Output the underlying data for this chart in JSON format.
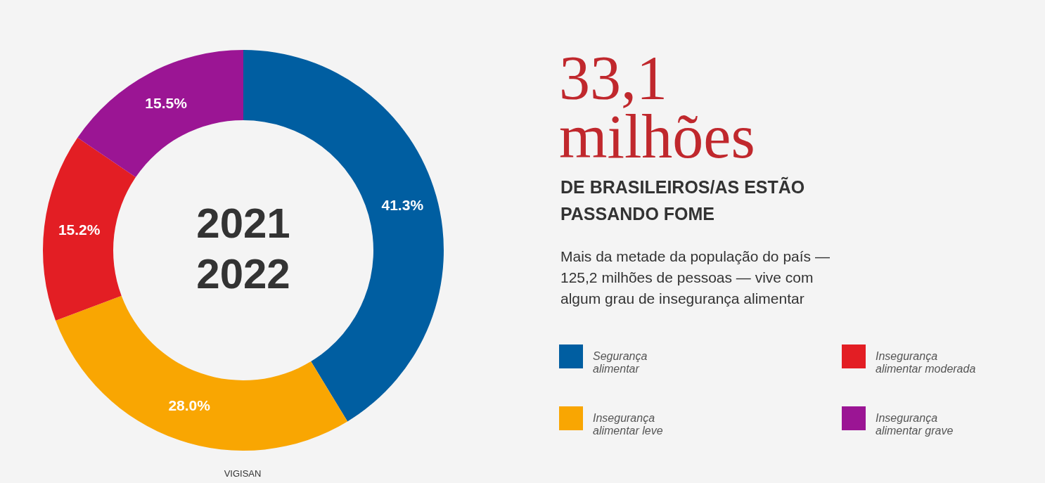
{
  "chart_data": {
    "type": "donut",
    "title": "33,1 milhões",
    "subtitle": "DE BRASILEIROS/AS ESTÃO PASSANDO FOME",
    "categories": [
      "Segurança alimentar",
      "Insegurança alimentar leve",
      "Insegurança alimentar moderada",
      "Insegurança alimentar grave"
    ],
    "values": [
      41.3,
      28.0,
      15.2,
      15.5
    ],
    "value_labels": [
      "41.3%",
      "28.0%",
      "15.2%",
      "15.5%"
    ],
    "colors": [
      "#005ea1",
      "#f9a602",
      "#e31e24",
      "#9b1594"
    ],
    "legend": "right",
    "annotations": [
      "2021 2022",
      "Mais da metade da população do país — 125,2 milhões de pessoas — vive com algum grau de insegurança alimentar",
      "VIGISAN"
    ]
  }
}
